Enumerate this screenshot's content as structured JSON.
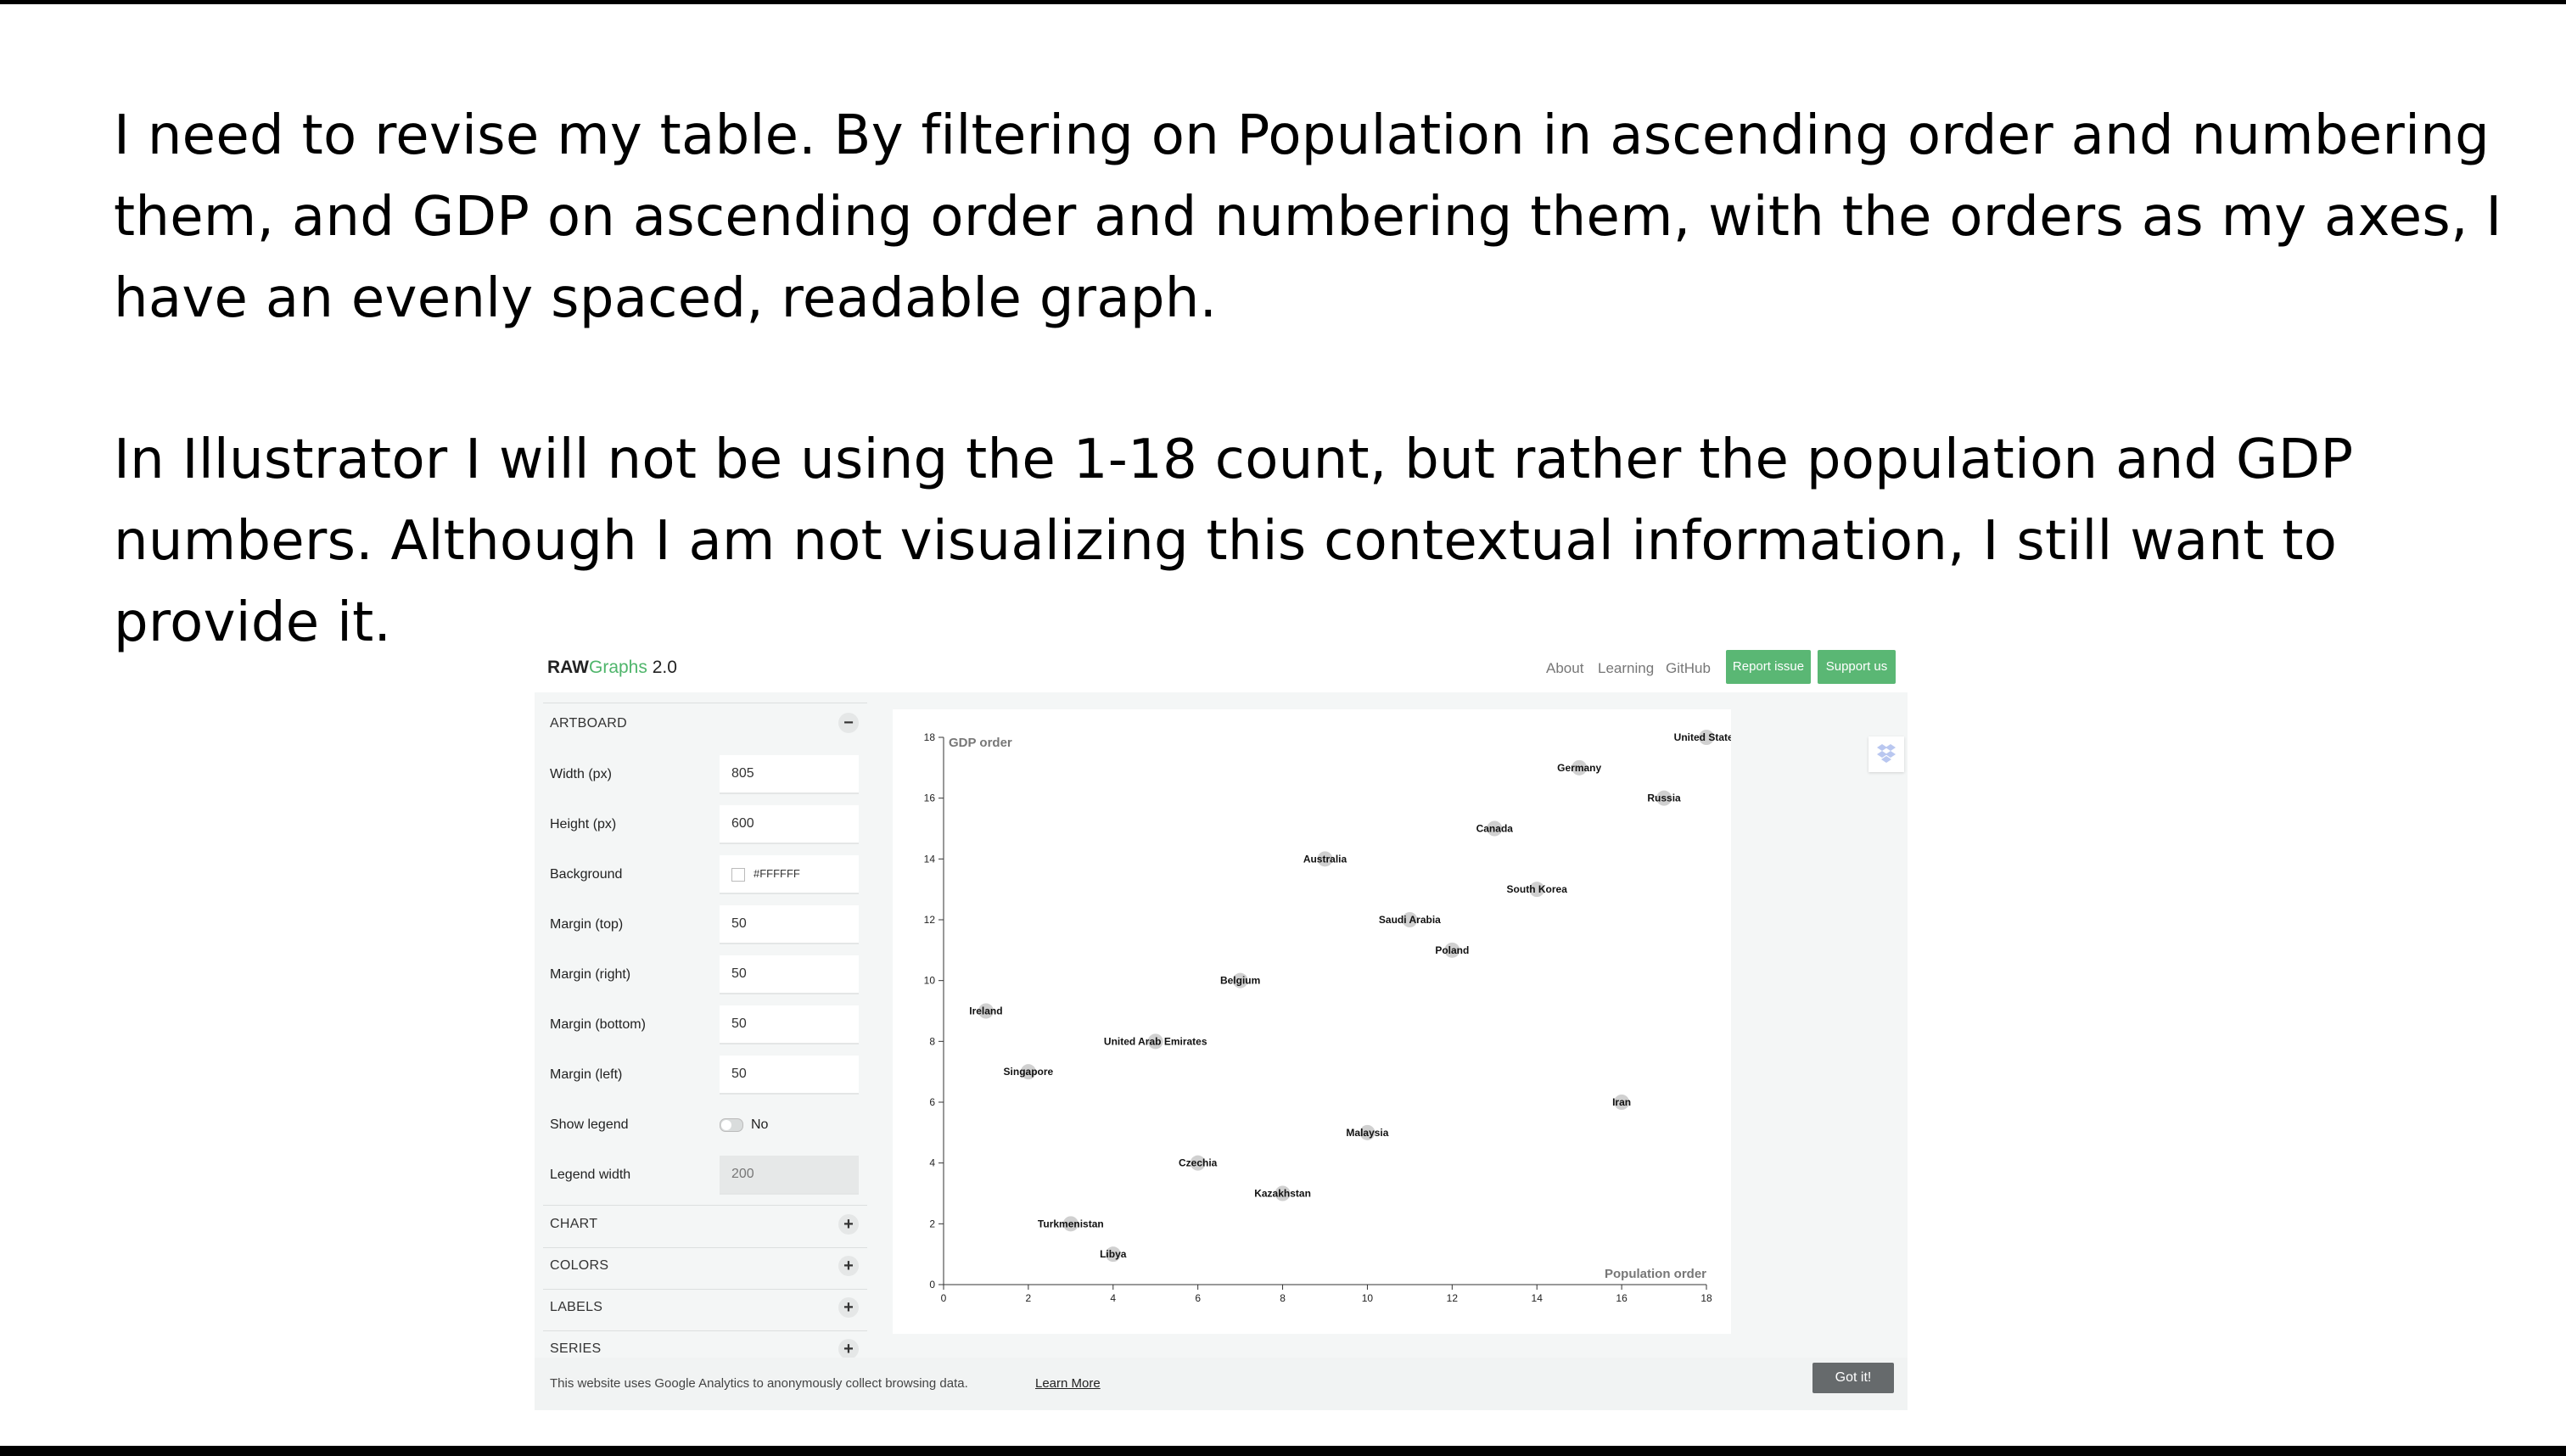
{
  "slide": {
    "paragraph_1": "I need to revise my table.  By filtering on Population in ascending order and numbering them, and GDP on ascending order and numbering them, with the orders as my axes, I have an evenly spaced, readable graph.",
    "paragraph_2": "In Illustrator I will not be using the 1-18 count, but rather the population and GDP numbers. Although I am not visualizing this contextual information, I still want to provide it."
  },
  "app": {
    "brand_raw": "RAW",
    "brand_graphs": "Graphs",
    "brand_version": "2.0",
    "nav": [
      "About",
      "Learning",
      "GitHub"
    ],
    "report_issue": "Report issue",
    "support_us": "Support us",
    "brand_color": "#4fb56b",
    "button_color": "#5ab774"
  },
  "sidebar": {
    "artboard_label": "ARTBOARD",
    "rows": [
      {
        "label": "Width (px)",
        "value": "805"
      },
      {
        "label": "Height (px)",
        "value": "600"
      },
      {
        "label": "Background",
        "value": "#FFFFFF"
      },
      {
        "label": "Margin (top)",
        "value": "50"
      },
      {
        "label": "Margin (right)",
        "value": "50"
      },
      {
        "label": "Margin (bottom)",
        "value": "50"
      },
      {
        "label": "Margin (left)",
        "value": "50"
      }
    ],
    "show_legend_label": "Show legend",
    "show_legend_value": "No",
    "legend_width_label": "Legend width",
    "legend_width_value": "200",
    "sections": [
      "CHART",
      "COLORS",
      "LABELS",
      "SERIES"
    ],
    "collapse_icon": "minus-icon",
    "expand_icon": "plus-icon"
  },
  "cookie": {
    "text": "This website uses Google Analytics to anonymously collect browsing data.",
    "link": "Learn More",
    "button": "Got it!"
  },
  "chart_data": {
    "type": "scatter",
    "xlabel": "Population order",
    "ylabel": "GDP order",
    "xlim": [
      0,
      18
    ],
    "ylim": [
      0,
      18
    ],
    "xticks": [
      0,
      2,
      4,
      6,
      8,
      10,
      12,
      14,
      16,
      18
    ],
    "yticks": [
      0,
      2,
      4,
      6,
      8,
      10,
      12,
      14,
      16,
      18
    ],
    "grid": false,
    "point_color": "#c8c8c8",
    "points": [
      {
        "label": "United States",
        "x": 18,
        "y": 18
      },
      {
        "label": "Germany",
        "x": 15,
        "y": 17
      },
      {
        "label": "Russia",
        "x": 17,
        "y": 16
      },
      {
        "label": "Canada",
        "x": 13,
        "y": 15
      },
      {
        "label": "Australia",
        "x": 9,
        "y": 14
      },
      {
        "label": "South Korea",
        "x": 14,
        "y": 13
      },
      {
        "label": "Saudi Arabia",
        "x": 11,
        "y": 12
      },
      {
        "label": "Poland",
        "x": 12,
        "y": 11
      },
      {
        "label": "Belgium",
        "x": 7,
        "y": 10
      },
      {
        "label": "Ireland",
        "x": 1,
        "y": 9
      },
      {
        "label": "United Arab Emirates",
        "x": 5,
        "y": 8
      },
      {
        "label": "Singapore",
        "x": 2,
        "y": 7
      },
      {
        "label": "Iran",
        "x": 16,
        "y": 6
      },
      {
        "label": "Malaysia",
        "x": 10,
        "y": 5
      },
      {
        "label": "Czechia",
        "x": 6,
        "y": 4
      },
      {
        "label": "Kazakhstan",
        "x": 8,
        "y": 3
      },
      {
        "label": "Turkmenistan",
        "x": 3,
        "y": 2
      },
      {
        "label": "Libya",
        "x": 4,
        "y": 1
      }
    ]
  }
}
